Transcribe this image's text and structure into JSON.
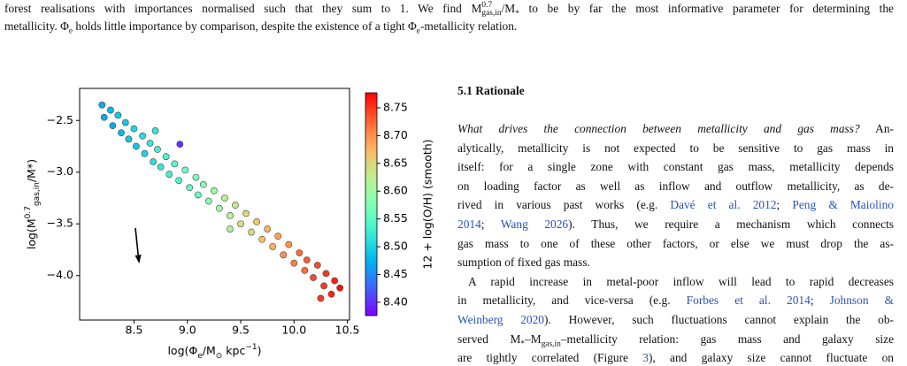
{
  "caption": {
    "lines": [
      [
        "forest realisations with importances normalised such that they sum to 1. We find M",
        {
          "t": "0.7",
          "k": "supsub",
          "s": "gas,in"
        },
        "/M",
        {
          "t": "*",
          "k": "sub"
        },
        " to be by far the most informative parameter for determining the"
      ],
      [
        "metallicity. Φ",
        {
          "t": "e",
          "k": "sub"
        },
        " holds little importance by comparison, despite the existence of a tight Φ",
        {
          "t": "e",
          "k": "sub"
        },
        "-metallicity relation."
      ]
    ]
  },
  "section": {
    "heading": "5.1 Rationale",
    "lines": [
      [
        {
          "t": "What drives the connection between metallicity and gas mass?",
          "k": "em"
        },
        " An-"
      ],
      [
        "alytically, metallicity is not expected to be sensitive to gas mass in"
      ],
      [
        "itself: for a single zone with constant gas mass, metallicity depends"
      ],
      [
        "on loading factor as well as inflow and outflow metallicity, as de-"
      ],
      [
        "rived in various past works (e.g. ",
        {
          "t": "Davé et al. 2012",
          "k": "link"
        },
        "; ",
        {
          "t": "Peng & Maiolino",
          "k": "link"
        }
      ],
      [
        {
          "t": "2014",
          "k": "link"
        },
        "; ",
        {
          "t": "Wang 2026",
          "k": "link"
        },
        "). Thus, we require a mechanism which connects"
      ],
      [
        "gas mass to one of these other factors, or else we must drop the as-"
      ],
      [
        "sumption of fixed gas mass."
      ],
      [
        "A rapid increase in metal-poor inflow will lead to rapid decreases"
      ],
      [
        "in metallicity, and vice-versa (e.g. ",
        {
          "t": "Forbes et al. 2014",
          "k": "link"
        },
        "; ",
        {
          "t": "Johnson &",
          "k": "link"
        }
      ],
      [
        {
          "t": "Weinberg 2020",
          "k": "link"
        },
        "). However, such fluctuations cannot explain the ob-"
      ],
      [
        "served M",
        {
          "t": "*",
          "k": "sub"
        },
        "–M",
        {
          "t": "gas,in",
          "k": "sub"
        },
        "–metallicity relation: gas mass and galaxy size"
      ],
      [
        "are tightly correlated (Figure ",
        {
          "t": "3",
          "k": "link"
        },
        "), and galaxy size cannot fluctuate on"
      ]
    ]
  },
  "chart_data": {
    "type": "scatter",
    "x_label": [
      "log(Φ",
      {
        "t": "e",
        "k": "sub"
      },
      "/M",
      {
        "t": "⊙",
        "k": "sub"
      },
      " kpc",
      {
        "t": "−1",
        "k": "sup"
      },
      ")"
    ],
    "y_label": [
      "log(M",
      {
        "t": "0.7",
        "k": "supsub",
        "s": "gas,in"
      },
      "/M*)"
    ],
    "colorbar_label": "12 + log(O/H) (smooth)",
    "colormap": "rainbow",
    "xlim": [
      7.99,
      10.52
    ],
    "ylim": [
      -4.43,
      -2.19
    ],
    "clim": [
      8.376,
      8.777
    ],
    "xticks": [
      8.5,
      {
        "value": 9,
        "label": "9.0"
      },
      9.5,
      {
        "value": 10,
        "label": "10.0"
      },
      10.5
    ],
    "yticks": [
      {
        "value": -2.5,
        "label": "−2.5"
      },
      {
        "value": -3,
        "label": "−3.0"
      },
      {
        "value": -3.5,
        "label": "−3.5"
      },
      {
        "value": -4,
        "label": "−4.0"
      }
    ],
    "cticks": [
      {
        "value": 8.4,
        "label": "8.40"
      },
      8.45,
      {
        "value": 8.5,
        "label": "8.50"
      },
      8.55,
      {
        "value": 8.6,
        "label": "8.60"
      },
      8.65,
      {
        "value": 8.7,
        "label": "8.70"
      },
      8.75
    ],
    "x": [
      8.2,
      8.22,
      8.28,
      8.3,
      8.35,
      8.38,
      8.42,
      8.45,
      8.5,
      8.52,
      8.58,
      8.6,
      8.65,
      8.68,
      8.72,
      8.75,
      8.8,
      8.83,
      8.88,
      8.93,
      8.92,
      8.98,
      9.02,
      9.08,
      9.1,
      9.15,
      9.2,
      9.25,
      9.3,
      9.35,
      9.4,
      9.45,
      9.5,
      9.55,
      9.6,
      9.65,
      9.7,
      9.75,
      9.8,
      9.85,
      9.9,
      9.95,
      10.0,
      10.05,
      10.1,
      10.12,
      10.18,
      10.22,
      10.28,
      10.3,
      10.35,
      10.38,
      10.43,
      10.25,
      9.4,
      8.7
    ],
    "y": [
      -2.35,
      -2.47,
      -2.4,
      -2.55,
      -2.45,
      -2.62,
      -2.52,
      -2.68,
      -2.58,
      -2.75,
      -2.65,
      -2.82,
      -2.72,
      -2.9,
      -2.78,
      -2.95,
      -2.85,
      -3.02,
      -2.92,
      -2.73,
      -3.08,
      -2.98,
      -3.15,
      -3.05,
      -3.22,
      -3.12,
      -3.28,
      -3.18,
      -3.35,
      -3.25,
      -3.42,
      -3.32,
      -3.5,
      -3.4,
      -3.58,
      -3.48,
      -3.65,
      -3.55,
      -3.72,
      -3.62,
      -3.8,
      -3.7,
      -3.88,
      -3.78,
      -3.95,
      -3.85,
      -4.02,
      -3.9,
      -4.1,
      -3.98,
      -4.18,
      -4.05,
      -4.12,
      -4.22,
      -3.55,
      -2.6
    ],
    "c": [
      8.47,
      8.47,
      8.48,
      8.47,
      8.49,
      8.48,
      8.49,
      8.49,
      8.5,
      8.49,
      8.51,
      8.5,
      8.52,
      8.51,
      8.53,
      8.52,
      8.54,
      8.53,
      8.55,
      8.4,
      8.54,
      8.56,
      8.55,
      8.57,
      8.56,
      8.58,
      8.58,
      8.6,
      8.6,
      8.62,
      8.62,
      8.63,
      8.64,
      8.65,
      8.65,
      8.66,
      8.67,
      8.68,
      8.68,
      8.69,
      8.7,
      8.7,
      8.71,
      8.72,
      8.72,
      8.73,
      8.74,
      8.74,
      8.75,
      8.75,
      8.76,
      8.76,
      8.77,
      8.75,
      8.61,
      8.52
    ]
  }
}
